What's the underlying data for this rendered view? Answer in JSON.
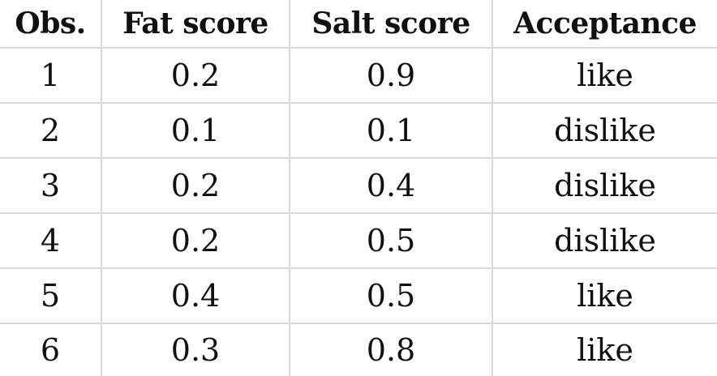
{
  "table": {
    "headers": [
      "Obs.",
      "Fat score",
      "Salt score",
      "Acceptance"
    ],
    "rows": [
      [
        "1",
        "0.2",
        "0.9",
        "like"
      ],
      [
        "2",
        "0.1",
        "0.1",
        "dislike"
      ],
      [
        "3",
        "0.2",
        "0.4",
        "dislike"
      ],
      [
        "4",
        "0.2",
        "0.5",
        "dislike"
      ],
      [
        "5",
        "0.4",
        "0.5",
        "like"
      ],
      [
        "6",
        "0.3",
        "0.8",
        "like"
      ]
    ]
  }
}
